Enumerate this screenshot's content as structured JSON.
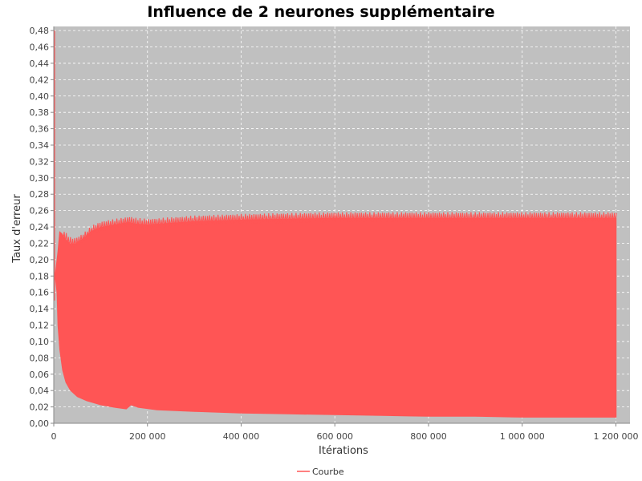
{
  "chart_data": {
    "type": "area",
    "title": "Influence de 2 neurones supplémentaire",
    "xlabel": "Itérations",
    "ylabel": "Taux d'erreur",
    "xlim": [
      0,
      1230000
    ],
    "ylim": [
      0,
      0.485
    ],
    "x_ticks": [
      {
        "value": 0,
        "label": "0"
      },
      {
        "value": 200000,
        "label": "200 000"
      },
      {
        "value": 400000,
        "label": "400 000"
      },
      {
        "value": 600000,
        "label": "600 000"
      },
      {
        "value": 800000,
        "label": "800 000"
      },
      {
        "value": 1000000,
        "label": "1 000 000"
      },
      {
        "value": 1200000,
        "label": "1 200 000"
      }
    ],
    "y_ticks": [
      {
        "value": 0.0,
        "label": "0,00"
      },
      {
        "value": 0.02,
        "label": "0,02"
      },
      {
        "value": 0.04,
        "label": "0,04"
      },
      {
        "value": 0.06,
        "label": "0,06"
      },
      {
        "value": 0.08,
        "label": "0,08"
      },
      {
        "value": 0.1,
        "label": "0,10"
      },
      {
        "value": 0.12,
        "label": "0,12"
      },
      {
        "value": 0.14,
        "label": "0,14"
      },
      {
        "value": 0.16,
        "label": "0,16"
      },
      {
        "value": 0.18,
        "label": "0,18"
      },
      {
        "value": 0.2,
        "label": "0,20"
      },
      {
        "value": 0.22,
        "label": "0,22"
      },
      {
        "value": 0.24,
        "label": "0,24"
      },
      {
        "value": 0.26,
        "label": "0,26"
      },
      {
        "value": 0.28,
        "label": "0,28"
      },
      {
        "value": 0.3,
        "label": "0,30"
      },
      {
        "value": 0.32,
        "label": "0,32"
      },
      {
        "value": 0.34,
        "label": "0,34"
      },
      {
        "value": 0.36,
        "label": "0,36"
      },
      {
        "value": 0.38,
        "label": "0,38"
      },
      {
        "value": 0.4,
        "label": "0,40"
      },
      {
        "value": 0.42,
        "label": "0,42"
      },
      {
        "value": 0.44,
        "label": "0,44"
      },
      {
        "value": 0.46,
        "label": "0,46"
      },
      {
        "value": 0.48,
        "label": "0,48"
      }
    ],
    "series": [
      {
        "name": "Courbe",
        "color": "#ff5555",
        "upper_envelope": [
          [
            0,
            0.18
          ],
          [
            3000,
            0.185
          ],
          [
            8000,
            0.21
          ],
          [
            12000,
            0.235
          ],
          [
            18000,
            0.232
          ],
          [
            25000,
            0.225
          ],
          [
            35000,
            0.22
          ],
          [
            45000,
            0.22
          ],
          [
            60000,
            0.225
          ],
          [
            80000,
            0.235
          ],
          [
            100000,
            0.24
          ],
          [
            130000,
            0.243
          ],
          [
            160000,
            0.246
          ],
          [
            175000,
            0.244
          ],
          [
            200000,
            0.243
          ],
          [
            250000,
            0.245
          ],
          [
            300000,
            0.247
          ],
          [
            400000,
            0.249
          ],
          [
            500000,
            0.25
          ],
          [
            600000,
            0.251
          ],
          [
            700000,
            0.251
          ],
          [
            800000,
            0.251
          ],
          [
            900000,
            0.251
          ],
          [
            1000000,
            0.251
          ],
          [
            1100000,
            0.251
          ],
          [
            1200000,
            0.251
          ]
        ],
        "lower_envelope": [
          [
            0,
            0.18
          ],
          [
            3000,
            0.175
          ],
          [
            6000,
            0.16
          ],
          [
            8000,
            0.12
          ],
          [
            12000,
            0.09
          ],
          [
            18000,
            0.065
          ],
          [
            25000,
            0.05
          ],
          [
            35000,
            0.04
          ],
          [
            50000,
            0.032
          ],
          [
            70000,
            0.027
          ],
          [
            100000,
            0.022
          ],
          [
            130000,
            0.019
          ],
          [
            155000,
            0.017
          ],
          [
            165000,
            0.022
          ],
          [
            180000,
            0.019
          ],
          [
            220000,
            0.016
          ],
          [
            300000,
            0.014
          ],
          [
            400000,
            0.012
          ],
          [
            500000,
            0.011
          ],
          [
            600000,
            0.01
          ],
          [
            700000,
            0.009
          ],
          [
            800000,
            0.008
          ],
          [
            900000,
            0.008
          ],
          [
            1000000,
            0.007
          ],
          [
            1100000,
            0.007
          ],
          [
            1200000,
            0.007
          ]
        ],
        "initial_spike_max": 0.48
      }
    ],
    "grid": true,
    "legend_position": "bottom-center",
    "plot_background": "#c0c0c0",
    "grid_color": "#ffffff"
  }
}
